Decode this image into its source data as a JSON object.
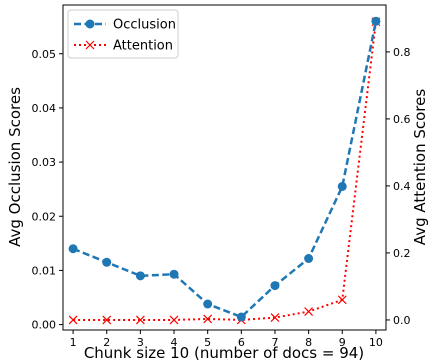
{
  "chart_data": {
    "type": "line",
    "xlabel": "Chunk size 10 (number of docs = 94)",
    "x": [
      1,
      2,
      3,
      4,
      5,
      6,
      7,
      8,
      9,
      10
    ],
    "x_ticks": [
      "1",
      "2",
      "3",
      "4",
      "5",
      "6",
      "7",
      "8",
      "9",
      "10"
    ],
    "xlim": [
      0.7,
      10.3
    ],
    "ylabel_left": "Avg Occlusion Scores",
    "ylim_left": [
      -0.001,
      0.059
    ],
    "y_ticks_left": [
      "0.00",
      "0.01",
      "0.02",
      "0.03",
      "0.04",
      "0.05"
    ],
    "ylabel_right": "Avg Attention Scores",
    "ylim_right": [
      -0.03,
      0.94
    ],
    "y_ticks_right": [
      "0.0",
      "0.2",
      "0.4",
      "0.6",
      "0.8"
    ],
    "grid": false,
    "legend_position": "top-left",
    "series": [
      {
        "name": "Occlusion",
        "axis": "left",
        "color": "#1f77b4",
        "line_style": "dashed",
        "marker": "circle",
        "values": [
          0.014,
          0.0115,
          0.009,
          0.0093,
          0.0038,
          0.0014,
          0.0072,
          0.0122,
          0.0255,
          0.056
        ]
      },
      {
        "name": "Attention",
        "axis": "right",
        "color": "#ff0000",
        "line_style": "dotted",
        "marker": "x",
        "values": [
          0.0,
          0.0,
          0.0,
          0.0,
          0.003,
          0.0,
          0.007,
          0.025,
          0.06,
          0.89
        ]
      }
    ]
  }
}
